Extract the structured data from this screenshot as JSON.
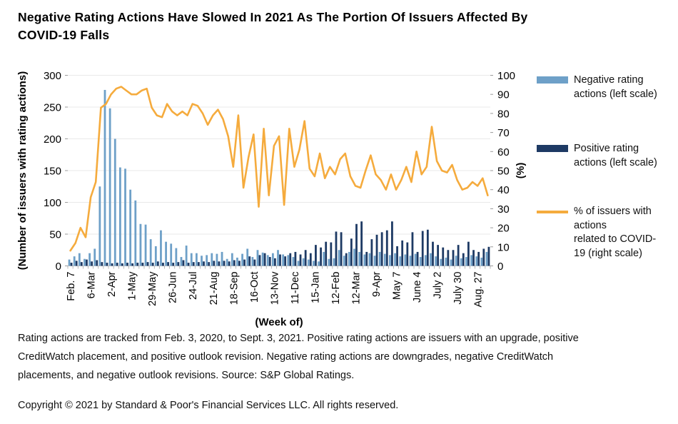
{
  "title": "Negative Rating Actions Have Slowed In 2021 As The Portion Of Issuers Affected By COVID-19 Falls",
  "legend": {
    "items": [
      {
        "label": "Negative rating\nactions (left scale)",
        "swatch": "bar"
      },
      {
        "label": "Positive rating\nactions (left scale)",
        "swatch": "bar"
      },
      {
        "label": "% of issuers with\nactions\nrelated to COVID-\n19 (right scale)",
        "swatch": "line"
      }
    ]
  },
  "footnote": "Rating actions are tracked from Feb. 3, 2020, to Sept. 3, 2021. Positive rating actions are issuers with an upgrade, positive CreditWatch placement, and positive outlook revision. Negative rating actions are downgrades, negative CreditWatch placements, and negative outlook revisions. Source: S&P Global Ratings.",
  "copyright": "Copyright © 2021 by Standard & Poor's Financial Services LLC. All rights reserved.",
  "chart_data": {
    "type": "bar",
    "subtype": "weekly grouped bars with overlaid percentage line",
    "x_axis_label": "(Week of)",
    "x_tick_labels": [
      "Feb. 7",
      "6-Mar",
      "2-Apr",
      "1-May",
      "29-May",
      "26-Jun",
      "24-Jul",
      "21-Aug",
      "18-Sep",
      "16-Oct",
      "13-Nov",
      "11-Dec",
      "15-Jan",
      "12-Feb",
      "12-Mar",
      "9-Apr",
      "May 7",
      "June 4",
      "July 2",
      "July 30",
      "Aug. 27"
    ],
    "x_label_every": 4,
    "weeks_total": 83,
    "left_axis": {
      "label": "(Number of issuers with rating actions)",
      "min": 0,
      "max": 300,
      "tick_step": 50
    },
    "right_axis": {
      "label": "(%)",
      "min": 0,
      "max": 100,
      "tick_step": 10
    },
    "grid": "horizontal only",
    "legend_position": "right",
    "series": [
      {
        "name": "Negative rating actions (left scale)",
        "type": "bar",
        "axis": "left",
        "color": "#6EA0C8",
        "values": [
          10,
          15,
          20,
          11,
          20,
          27,
          125,
          277,
          248,
          200,
          155,
          153,
          120,
          103,
          66,
          65,
          42,
          31,
          56,
          38,
          35,
          28,
          14,
          32,
          20,
          20,
          16,
          17,
          20,
          19,
          22,
          11,
          20,
          13,
          19,
          27,
          14,
          25,
          21,
          17,
          20,
          25,
          18,
          17,
          14,
          8,
          12,
          10,
          8,
          7,
          22,
          11,
          12,
          25,
          16,
          22,
          27,
          22,
          18,
          20,
          16,
          22,
          19,
          17,
          20,
          15,
          18,
          16,
          19,
          14,
          17,
          20,
          15,
          11,
          13,
          10,
          16,
          12,
          14,
          17,
          15,
          13,
          22
        ]
      },
      {
        "name": "Positive rating actions (left scale)",
        "type": "bar",
        "axis": "left",
        "color": "#1E3A64",
        "values": [
          5,
          8,
          6,
          10,
          7,
          9,
          6,
          5,
          4,
          5,
          4,
          5,
          4,
          5,
          5,
          6,
          5,
          7,
          5,
          6,
          5,
          6,
          9,
          5,
          6,
          6,
          7,
          6,
          8,
          7,
          8,
          7,
          9,
          8,
          10,
          15,
          10,
          17,
          20,
          14,
          12,
          18,
          15,
          20,
          22,
          18,
          25,
          20,
          33,
          29,
          38,
          37,
          54,
          53,
          20,
          43,
          66,
          70,
          22,
          42,
          49,
          53,
          56,
          70,
          31,
          40,
          37,
          53,
          22,
          55,
          57,
          38,
          33,
          29,
          25,
          25,
          33,
          20,
          38,
          25,
          22,
          27,
          30
        ]
      },
      {
        "name": "% of issuers with actions related to COVID-19 (right scale)",
        "type": "line",
        "axis": "right",
        "color": "#F5AB3D",
        "values": [
          8,
          12,
          20,
          15,
          36,
          44,
          83,
          85,
          90,
          93,
          94,
          92,
          90,
          90,
          92,
          93,
          83,
          79,
          78,
          85,
          81,
          79,
          81,
          79,
          85,
          84,
          80,
          74,
          79,
          82,
          77,
          68,
          52,
          79,
          41,
          57,
          69,
          31,
          72,
          37,
          63,
          68,
          32,
          72,
          52,
          61,
          76,
          51,
          47,
          59,
          46,
          52,
          48,
          56,
          59,
          47,
          42,
          41,
          50,
          58,
          48,
          45,
          40,
          48,
          40,
          45,
          52,
          44,
          60,
          48,
          52,
          73,
          55,
          50,
          49,
          53,
          45,
          40,
          41,
          44,
          42,
          46,
          37
        ]
      }
    ]
  }
}
